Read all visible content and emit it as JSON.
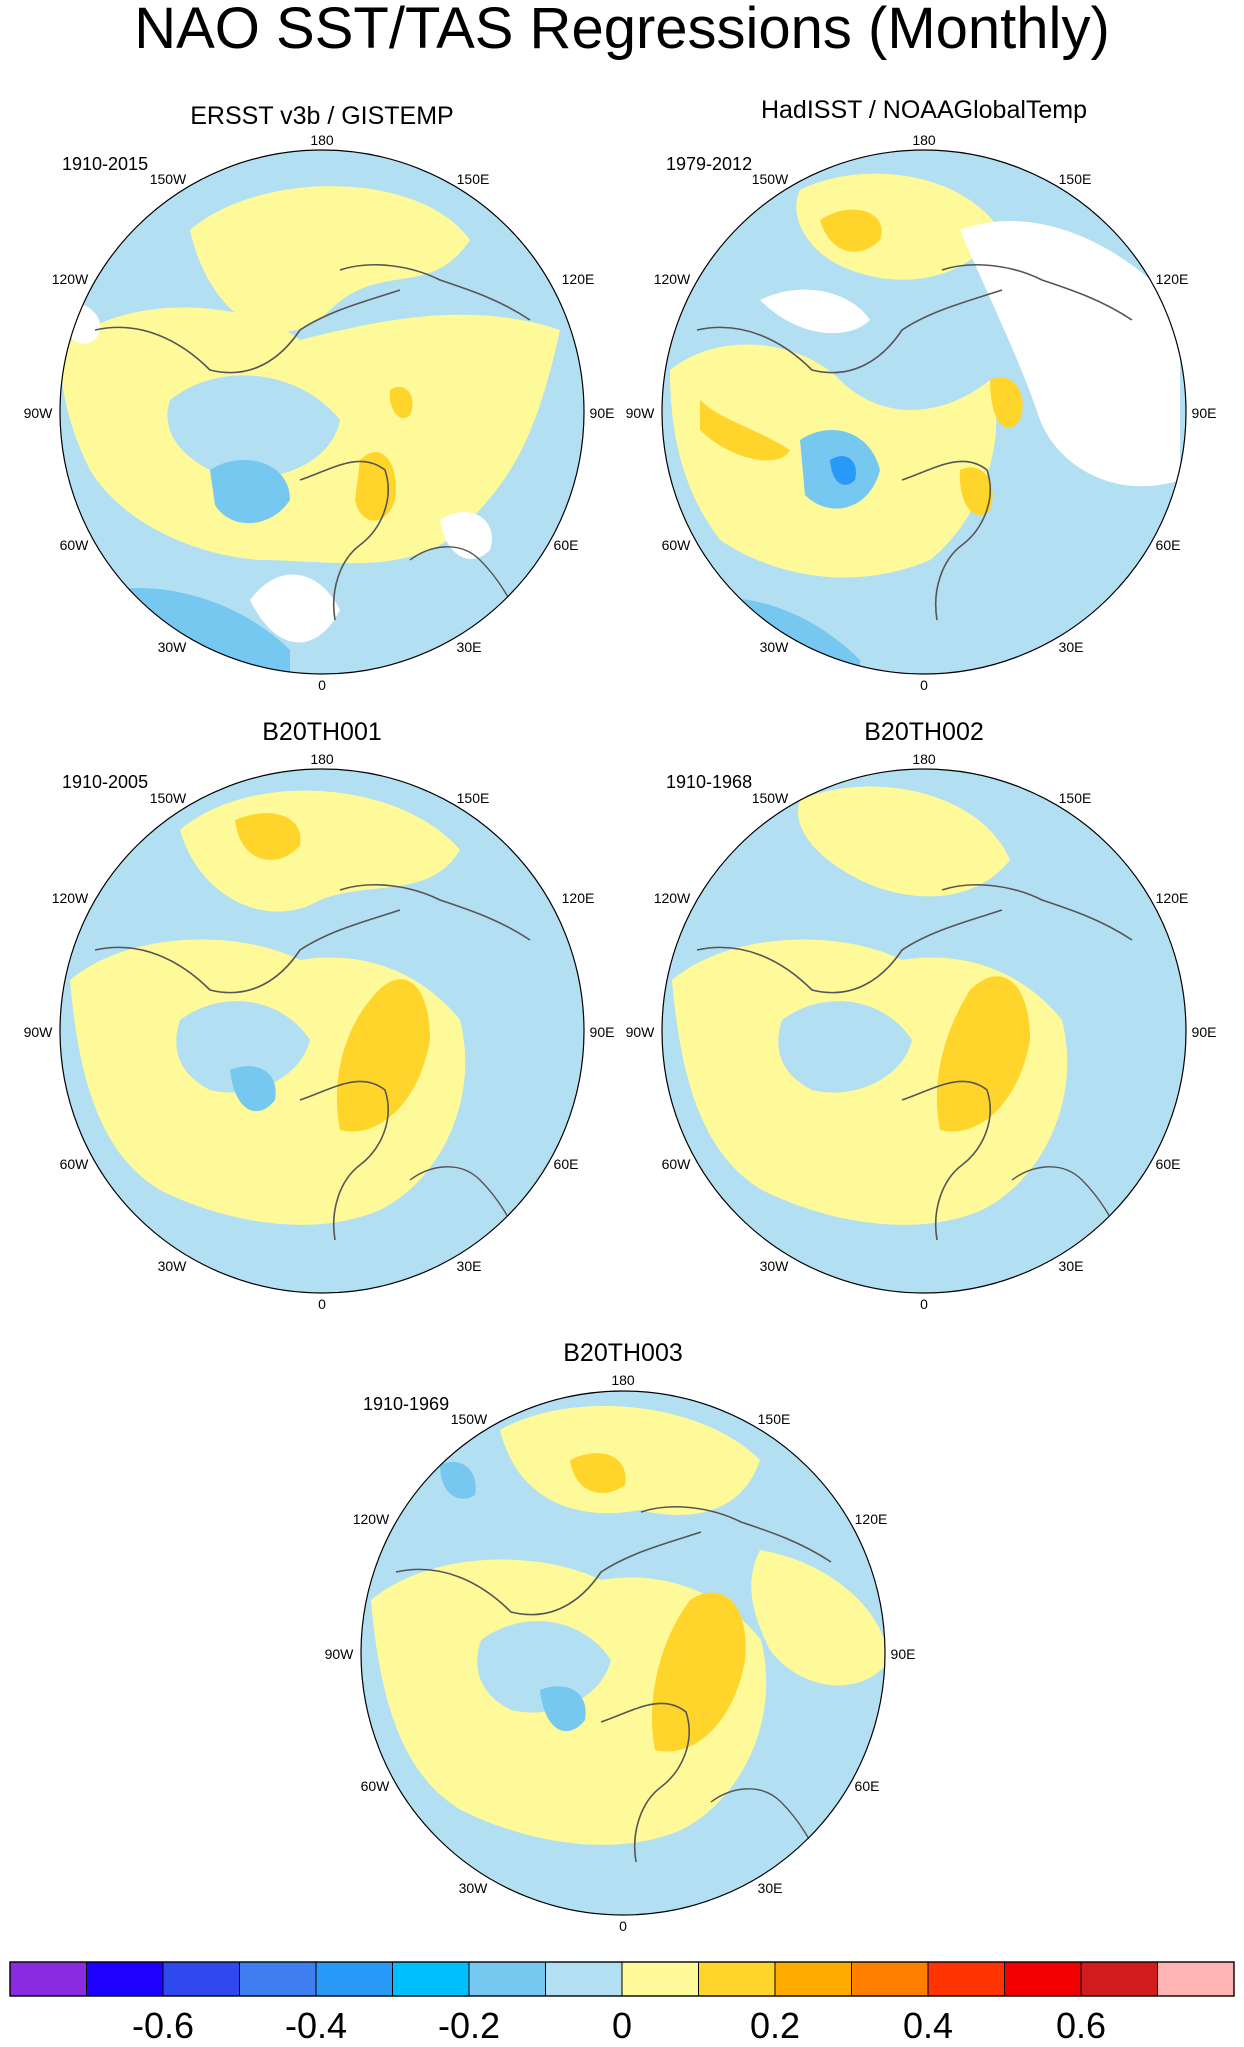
{
  "figure": {
    "title": "NAO SST/TAS Regressions (Monthly)",
    "projection": "polar stereographic (north)",
    "longitude_labels": [
      "180",
      "150E",
      "120E",
      "90E",
      "60E",
      "30E",
      "0",
      "30W",
      "60W",
      "90W",
      "120W",
      "150W"
    ]
  },
  "panels": [
    {
      "title": "ERSST v3b / GISTEMP",
      "period": "1910-2015",
      "has_missing_data": true
    },
    {
      "title": "HadISST / NOAAGlobalTemp",
      "period": "1979-2012",
      "has_missing_data": true
    },
    {
      "title": "B20TH001",
      "period": "1910-2005",
      "has_missing_data": false
    },
    {
      "title": "B20TH002",
      "period": "1910-1968",
      "has_missing_data": false
    },
    {
      "title": "B20TH003",
      "period": "1910-1969",
      "has_missing_data": false
    }
  ],
  "colorbar": {
    "colors": [
      "#8a2be2",
      "#1e00ff",
      "#2f49ee",
      "#3f7ef0",
      "#2999f7",
      "#00bfff",
      "#76c8f0",
      "#b3dff2",
      "#fffa99",
      "#ffd52b",
      "#ffab00",
      "#ff7f00",
      "#ff3400",
      "#f00000",
      "#d01c1c",
      "#ffb4b4"
    ],
    "tick_labels": [
      "-0.6",
      "-0.4",
      "-0.2",
      "0",
      "0.2",
      "0.4",
      "0.6"
    ],
    "tick_values": [
      -0.6,
      -0.4,
      -0.2,
      0,
      0.2,
      0.4,
      0.6
    ]
  },
  "colors": {
    "land_outline": "#555555",
    "missing": "#ffffff"
  }
}
